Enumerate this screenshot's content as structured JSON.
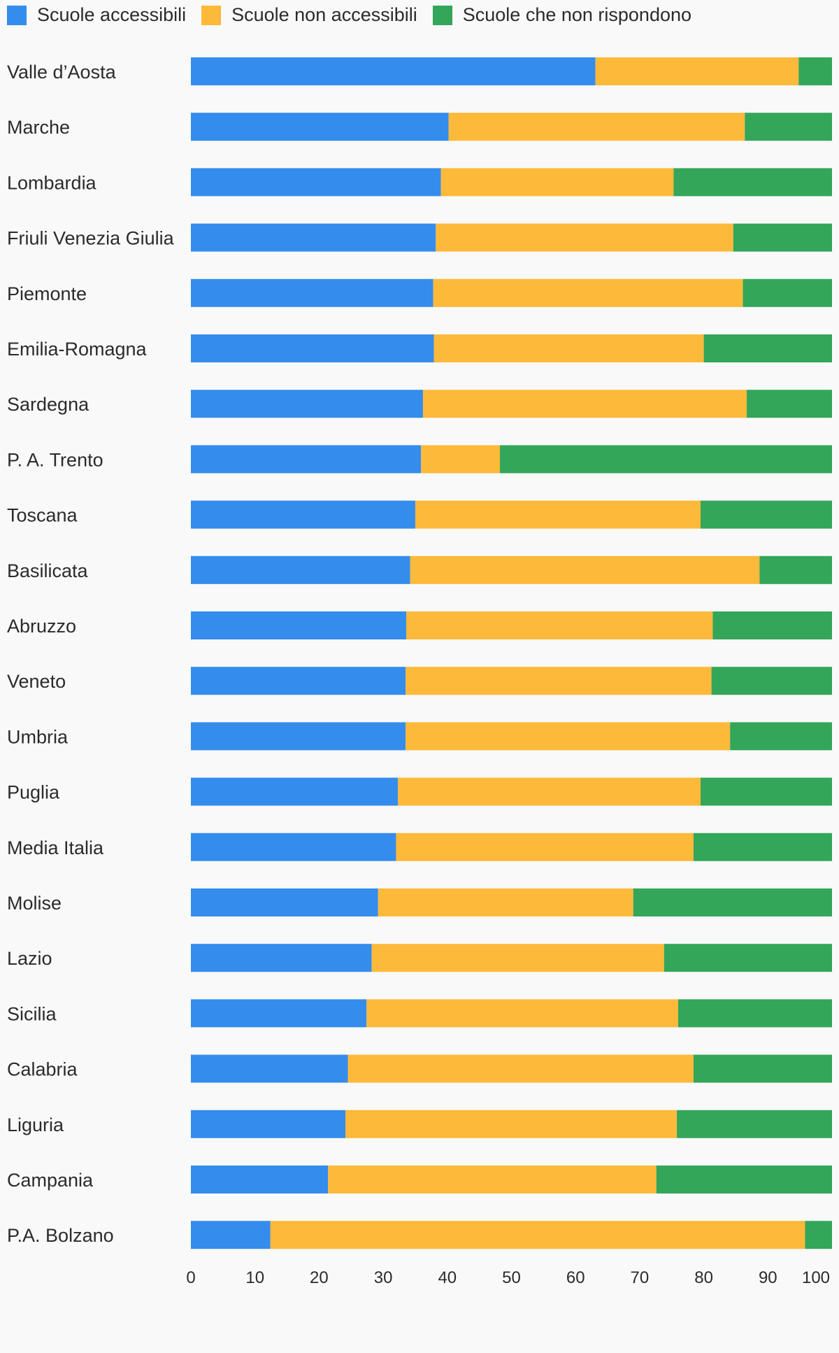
{
  "legend": {
    "items": [
      {
        "label": "Scuole accessibili",
        "color": "#348ced"
      },
      {
        "label": "Scuole non accessibili",
        "color": "#fdb939"
      },
      {
        "label": "Scuole che non rispondono",
        "color": "#33a65a"
      }
    ]
  },
  "chart_data": {
    "type": "bar",
    "orientation": "horizontal",
    "stacked": true,
    "grid": false,
    "legend_position": "top-left",
    "xlim": [
      0,
      100
    ],
    "xticks": [
      "0",
      "10",
      "20",
      "30",
      "40",
      "50",
      "60",
      "70",
      "80",
      "90",
      "100"
    ],
    "categories": [
      "Valle d’Aosta",
      "Marche",
      "Lombardia",
      "Friuli Venezia Giulia",
      "Piemonte",
      "Emilia-Romagna",
      "Sardegna",
      "P. A. Trento",
      "Toscana",
      "Basilicata",
      "Abruzzo",
      "Veneto",
      "Umbria",
      "Puglia",
      "Media Italia",
      "Molise",
      "Lazio",
      "Sicilia",
      "Calabria",
      "Liguria",
      "Campania",
      "P.A. Bolzano"
    ],
    "series": [
      {
        "name": "Scuole accessibili",
        "color": "#348ced",
        "values": [
          63.1,
          40.2,
          39.0,
          38.2,
          37.8,
          37.9,
          36.2,
          35.9,
          35.0,
          34.2,
          33.6,
          33.5,
          33.5,
          32.3,
          32.0,
          29.2,
          28.2,
          27.4,
          24.5,
          24.1,
          21.4,
          12.4
        ]
      },
      {
        "name": "Scuole non accessibili",
        "color": "#fdb939",
        "values": [
          31.7,
          46.2,
          36.3,
          46.4,
          48.3,
          42.1,
          50.5,
          12.3,
          44.5,
          54.5,
          47.8,
          47.7,
          50.6,
          47.2,
          46.4,
          39.8,
          45.6,
          48.6,
          53.9,
          51.7,
          51.2,
          83.4
        ]
      },
      {
        "name": "Scuole che non rispondono",
        "color": "#33a65a",
        "values": [
          5.2,
          13.6,
          24.7,
          15.4,
          13.9,
          20.0,
          13.3,
          51.8,
          20.5,
          11.3,
          18.6,
          18.8,
          15.9,
          20.5,
          21.6,
          31.0,
          26.2,
          24.0,
          21.6,
          24.2,
          27.4,
          4.2
        ]
      }
    ]
  }
}
